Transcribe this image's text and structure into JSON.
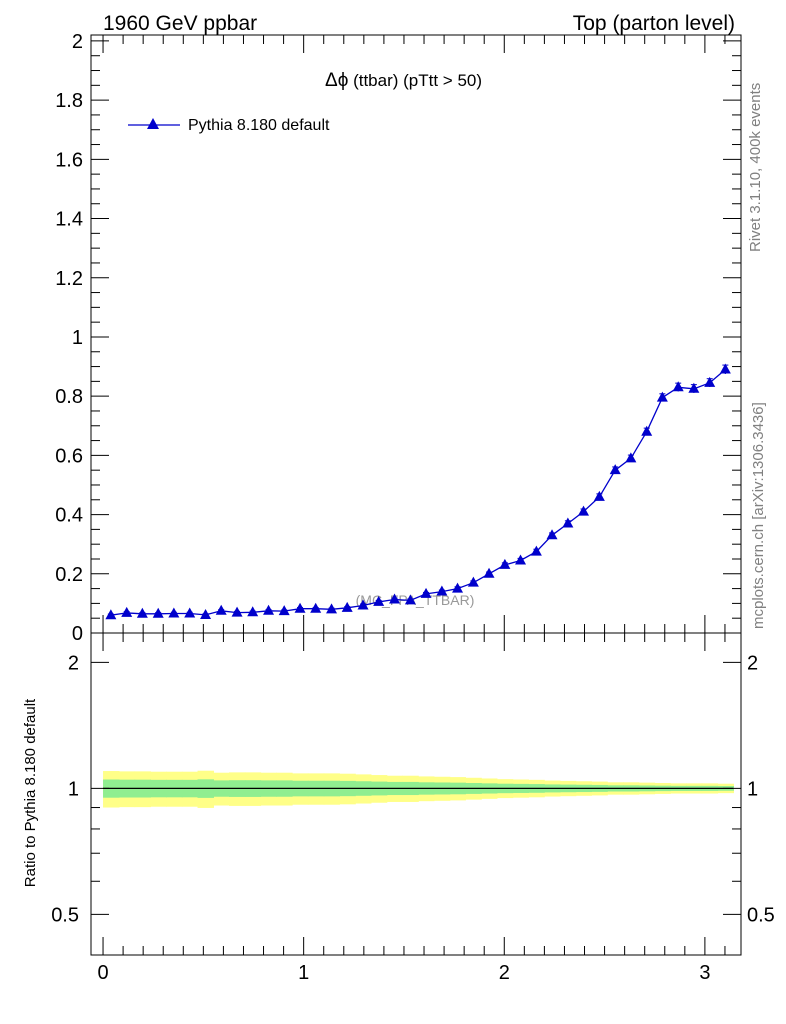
{
  "header": {
    "left": "1960 GeV ppbar",
    "right": "Top (parton level)"
  },
  "side_labels": {
    "rivet": "Rivet 3.1.10,  400k events",
    "mcplots": "mcplots.cern.ch [arXiv:1306.3436]"
  },
  "chart_data": [
    {
      "panel": "main",
      "type": "line",
      "title_symbol": "Δϕ",
      "title_rest": " (ttbar) (pTtt > 50)",
      "watermark": "(MC_FPA_TTBAR)",
      "legend": {
        "placement": "top-left",
        "label": "Pythia 8.180 default"
      },
      "marker": "triangle",
      "color": "#0000cc",
      "xlim": [
        -0.06,
        3.18
      ],
      "ylim": [
        0,
        2.02
      ],
      "yticks": [
        0,
        0.2,
        0.4,
        0.6,
        0.8,
        1,
        1.2,
        1.4,
        1.6,
        1.8,
        2
      ],
      "ytick_labels": [
        "0",
        "0.2",
        "0.4",
        "0.6",
        "0.8",
        "1",
        "1.2",
        "1.4",
        "1.6",
        "1.8",
        "2"
      ],
      "series": [
        {
          "name": "Pythia 8.180 default",
          "x": [
            0.039,
            0.118,
            0.196,
            0.275,
            0.353,
            0.432,
            0.511,
            0.589,
            0.668,
            0.746,
            0.825,
            0.903,
            0.982,
            1.06,
            1.139,
            1.217,
            1.296,
            1.374,
            1.453,
            1.532,
            1.61,
            1.689,
            1.767,
            1.846,
            1.924,
            2.003,
            2.081,
            2.16,
            2.238,
            2.317,
            2.395,
            2.474,
            2.553,
            2.631,
            2.71,
            2.788,
            2.867,
            2.945,
            3.024,
            3.102
          ],
          "y": [
            0.06,
            0.068,
            0.065,
            0.065,
            0.066,
            0.066,
            0.061,
            0.075,
            0.069,
            0.07,
            0.075,
            0.074,
            0.082,
            0.082,
            0.08,
            0.085,
            0.093,
            0.105,
            0.113,
            0.11,
            0.132,
            0.14,
            0.15,
            0.17,
            0.2,
            0.23,
            0.245,
            0.275,
            0.33,
            0.37,
            0.41,
            0.46,
            0.55,
            0.59,
            0.68,
            0.795,
            0.83,
            0.825,
            0.845,
            0.89
          ],
          "err": [
            0.004,
            0.004,
            0.004,
            0.004,
            0.004,
            0.004,
            0.004,
            0.004,
            0.004,
            0.004,
            0.004,
            0.004,
            0.004,
            0.004,
            0.004,
            0.004,
            0.005,
            0.005,
            0.005,
            0.005,
            0.005,
            0.005,
            0.006,
            0.006,
            0.006,
            0.007,
            0.007,
            0.008,
            0.008,
            0.009,
            0.009,
            0.01,
            0.011,
            0.011,
            0.012,
            0.013,
            0.014,
            0.014,
            0.014,
            0.015
          ]
        }
      ]
    },
    {
      "panel": "ratio",
      "type": "area",
      "ylabel": "Ratio to Pythia 8.180 default",
      "scale": "log",
      "ylim": [
        0.4,
        2.35
      ],
      "ytick_labels": [
        "0.5",
        "1",
        "2"
      ],
      "ytick_values": [
        0.5,
        1,
        2
      ],
      "xlim": [
        -0.06,
        3.18
      ],
      "xtick_labels": [
        "0",
        "1",
        "2",
        "3"
      ],
      "xtick_values": [
        0,
        1,
        2,
        3
      ],
      "reference": 1,
      "bands": {
        "x_edges": [
          0.0,
          0.079,
          0.157,
          0.236,
          0.314,
          0.393,
          0.471,
          0.55,
          0.628,
          0.707,
          0.785,
          0.864,
          0.942,
          1.021,
          1.1,
          1.178,
          1.257,
          1.335,
          1.414,
          1.492,
          1.571,
          1.649,
          1.728,
          1.806,
          1.885,
          1.963,
          2.042,
          2.12,
          2.199,
          2.277,
          2.356,
          2.434,
          2.513,
          2.592,
          2.67,
          2.749,
          2.827,
          2.906,
          2.984,
          3.063,
          3.142
        ],
        "inner_half_width": [
          0.05,
          0.049,
          0.049,
          0.048,
          0.048,
          0.048,
          0.051,
          0.045,
          0.046,
          0.046,
          0.045,
          0.045,
          0.043,
          0.043,
          0.043,
          0.042,
          0.04,
          0.038,
          0.036,
          0.036,
          0.034,
          0.033,
          0.032,
          0.03,
          0.028,
          0.026,
          0.025,
          0.024,
          0.022,
          0.021,
          0.02,
          0.019,
          0.017,
          0.017,
          0.016,
          0.015,
          0.014,
          0.014,
          0.014,
          0.013
        ],
        "outer_half_width": [
          0.1,
          0.098,
          0.098,
          0.096,
          0.096,
          0.096,
          0.102,
          0.09,
          0.092,
          0.092,
          0.09,
          0.09,
          0.086,
          0.086,
          0.086,
          0.084,
          0.08,
          0.076,
          0.072,
          0.072,
          0.068,
          0.066,
          0.064,
          0.06,
          0.056,
          0.052,
          0.05,
          0.048,
          0.044,
          0.042,
          0.04,
          0.038,
          0.034,
          0.034,
          0.032,
          0.03,
          0.028,
          0.028,
          0.028,
          0.026
        ],
        "inner_color": "#90ee90",
        "outer_color": "#ffff88"
      }
    }
  ]
}
